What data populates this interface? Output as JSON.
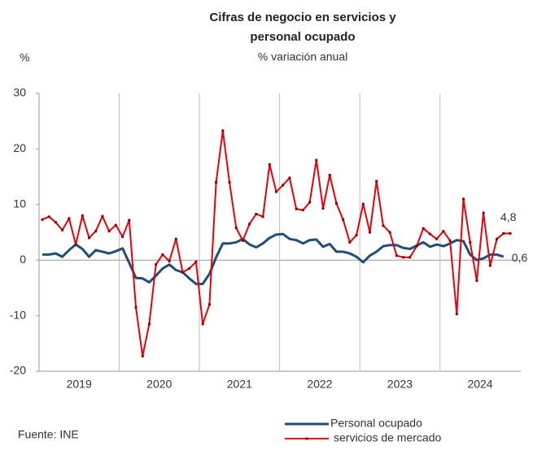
{
  "chart_data": {
    "type": "line",
    "title": [
      "Cifras de negocio en servicios y",
      "personal ocupado"
    ],
    "subtitle": "% variación anual",
    "y_label": "%",
    "source": "Fuente: INE",
    "categories": [
      null,
      null,
      null,
      null,
      null,
      null,
      "2019",
      null,
      null,
      null,
      null,
      null,
      null,
      null,
      null,
      null,
      null,
      null,
      "2020",
      null,
      null,
      null,
      null,
      null,
      null,
      null,
      null,
      null,
      null,
      null,
      "2021",
      null,
      null,
      null,
      null,
      null,
      null,
      null,
      null,
      null,
      null,
      null,
      "2022",
      null,
      null,
      null,
      null,
      null,
      null,
      null,
      null,
      null,
      null,
      null,
      "2023",
      null,
      null,
      null,
      null,
      null,
      null,
      null,
      null,
      null,
      null,
      null,
      "2024",
      null,
      null,
      null,
      null
    ],
    "series": [
      {
        "name": "Personal ocupado",
        "color": "#1f4e79",
        "end_label": "0,6",
        "values": [
          1.0,
          1.0,
          1.2,
          0.6,
          1.8,
          2.8,
          2.0,
          0.6,
          1.8,
          1.5,
          1.2,
          1.6,
          2.1,
          -0.5,
          -3.2,
          -3.3,
          -4.0,
          -2.8,
          -1.5,
          -0.8,
          -1.8,
          -2.2,
          -3.3,
          -4.3,
          -4.3,
          -2.5,
          0.5,
          3.0,
          3.0,
          3.2,
          3.8,
          2.8,
          2.3,
          3.0,
          4.0,
          4.6,
          4.7,
          3.8,
          3.6,
          3.0,
          3.6,
          3.7,
          2.4,
          2.9,
          1.5,
          1.5,
          1.2,
          0.6,
          -0.4,
          0.8,
          1.5,
          2.5,
          2.7,
          2.7,
          2.2,
          2.0,
          2.6,
          3.2,
          2.4,
          2.8,
          2.5,
          3.0,
          3.6,
          3.4,
          1.0,
          0.0,
          0.3,
          1.0,
          1.0,
          0.6,
          null
        ]
      },
      {
        "name": "servicios de mercado",
        "color": "#e8000b",
        "markers": true,
        "end_label": "4,8",
        "values": [
          7.3,
          7.8,
          6.8,
          5.4,
          7.5,
          2.8,
          8.0,
          4.0,
          5.2,
          7.9,
          5.2,
          6.3,
          4.2,
          7.2,
          -8.5,
          -17.3,
          -11.5,
          -0.8,
          1.0,
          -0.2,
          3.8,
          -2.2,
          -1.5,
          -0.3,
          -11.5,
          -8.0,
          14.0,
          23.3,
          14.0,
          5.8,
          3.5,
          6.5,
          8.3,
          7.8,
          17.2,
          12.3,
          13.5,
          14.8,
          9.2,
          9.0,
          10.4,
          18.0,
          9.3,
          15.3,
          10.2,
          7.3,
          3.2,
          4.5,
          10.1,
          5.0,
          14.2,
          6.2,
          5.0,
          0.8,
          0.5,
          0.5,
          2.5,
          5.7,
          4.7,
          3.8,
          5.2,
          3.5,
          -9.7,
          11.0,
          3.2,
          -3.7,
          8.5,
          -1.0,
          3.8,
          4.8,
          4.8
        ]
      }
    ],
    "ylim": [
      -20,
      30
    ],
    "yticks": [
      -20,
      -10,
      0,
      10,
      20,
      30
    ],
    "year_grid": true
  }
}
